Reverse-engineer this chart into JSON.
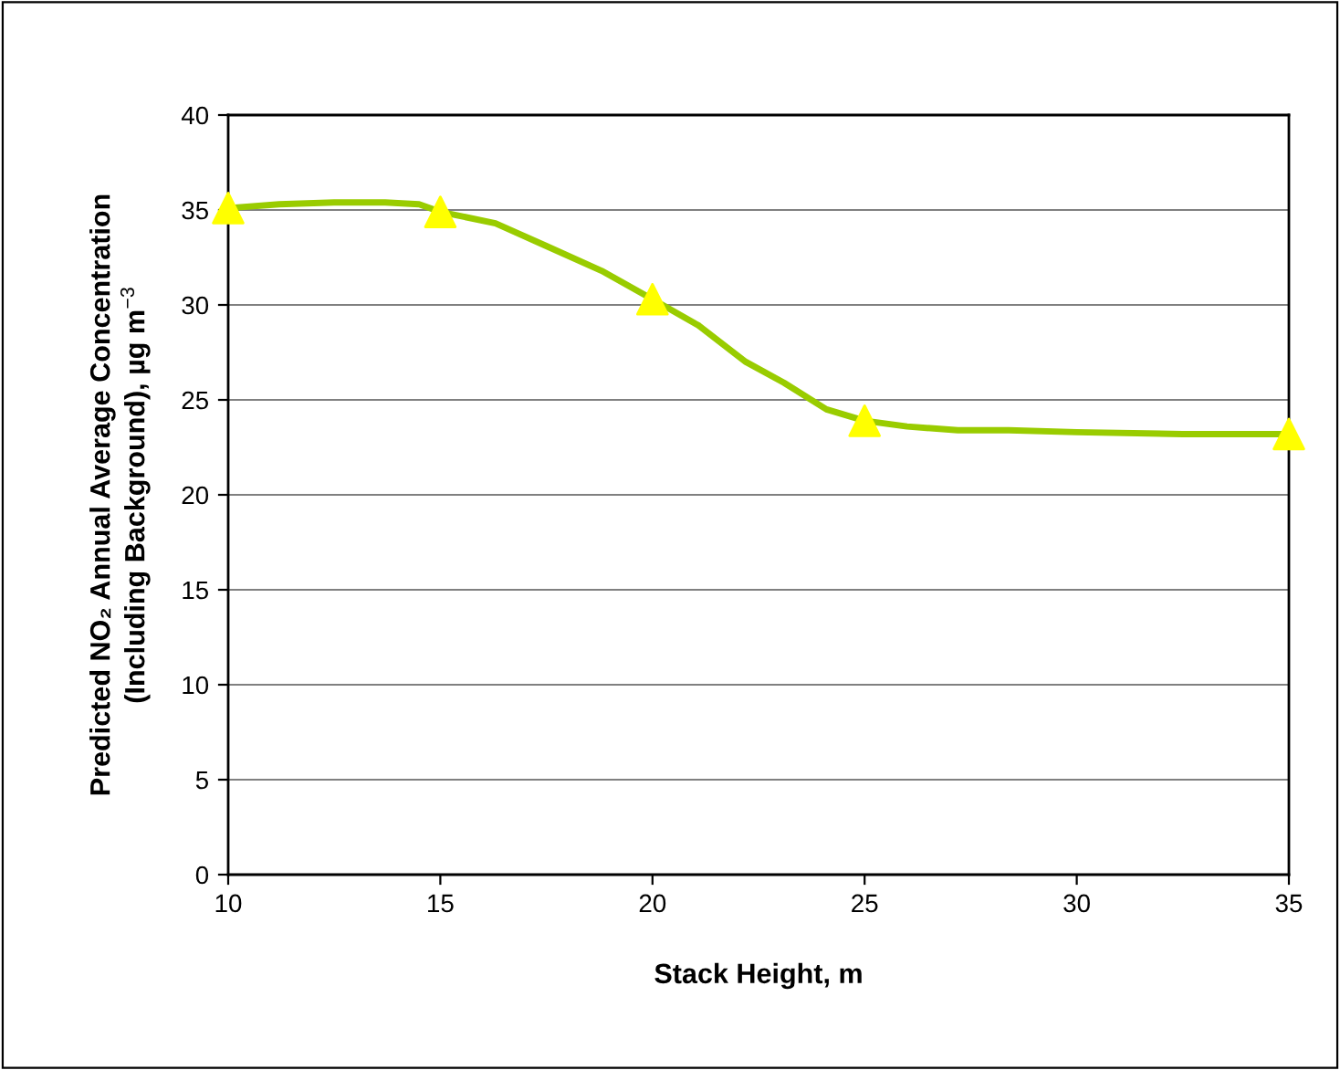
{
  "chart_data": {
    "type": "line",
    "xlabel": "Stack Height, m",
    "ylabel": "Predicted NO₂ Annual Average Concentration\n(Including Background), µg m$^{−3}$",
    "x": [
      10,
      15,
      20,
      25,
      35
    ],
    "series": [
      {
        "color": "#99cc00",
        "marker": "none",
        "line_style": "solid",
        "x": [
          10,
          11.2,
          12.5,
          13.7,
          14.5,
          15,
          16.3,
          17.5,
          18.8,
          20,
          21.1,
          22.2,
          23.1,
          24.1,
          25,
          26,
          27.2,
          28.4,
          30,
          32.5,
          35
        ],
        "values": [
          35.1,
          35.3,
          35.4,
          35.4,
          35.3,
          34.9,
          34.3,
          33.1,
          31.8,
          30.3,
          28.9,
          27.0,
          25.9,
          24.5,
          23.9,
          23.6,
          23.4,
          23.4,
          23.3,
          23.2,
          23.2
        ]
      },
      {
        "type": "scatter",
        "color": "#ffff00",
        "marker": "triangle",
        "values": [
          35.1,
          34.9,
          30.3,
          23.9,
          23.2
        ]
      }
    ],
    "xlim": [
      10,
      35
    ],
    "xticks": [
      10,
      15,
      20,
      25,
      30,
      35
    ],
    "ylim": [
      0,
      40
    ],
    "yticks": [
      0,
      5,
      10,
      15,
      20,
      25,
      30,
      35,
      40
    ],
    "grid": "y",
    "legend": false
  }
}
